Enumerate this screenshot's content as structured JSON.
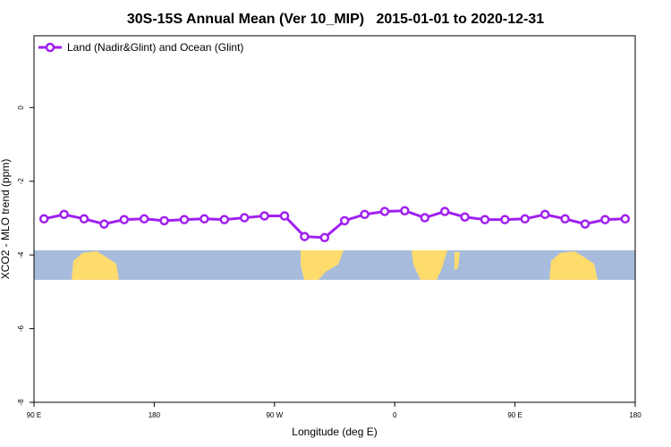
{
  "chart_data": {
    "type": "line",
    "title": "30S-15S Annual Mean (Ver 10_MIP)   2015-01-01 to 2020-12-31",
    "x_label": "Longitude (deg E)",
    "y_label": "XCO2 - MLO trend (ppm)",
    "xlim": [
      90,
      540
    ],
    "xticks": [
      {
        "value": 90,
        "label": "90 E"
      },
      {
        "value": 180,
        "label": "180"
      },
      {
        "value": 270,
        "label": "90 W"
      },
      {
        "value": 360,
        "label": "0"
      },
      {
        "value": 450,
        "label": "90 E"
      },
      {
        "value": 540,
        "label": "180"
      }
    ],
    "ylim": [
      -8,
      1.95
    ],
    "yticks": [
      -8,
      -6,
      -4,
      -2,
      0
    ],
    "legend": "top-left",
    "x": [
      97.5,
      112.5,
      127.5,
      142.5,
      157.5,
      172.5,
      187.5,
      202.5,
      217.5,
      232.5,
      247.5,
      262.5,
      277.5,
      292.5,
      307.5,
      322.5,
      337.5,
      352.5,
      367.5,
      382.5,
      397.5,
      412.5,
      427.5,
      442.5,
      457.5,
      472.5,
      487.5,
      502.5,
      517.5,
      532.5
    ],
    "series": [
      {
        "name": "Land (Nadir&Glint) and Ocean (Glint)",
        "color": "#a020f0",
        "values": [
          -3.02,
          -2.9,
          -3.02,
          -3.16,
          -3.04,
          -3.02,
          -3.07,
          -3.04,
          -3.02,
          -3.04,
          -2.99,
          -2.94,
          -2.94,
          -3.5,
          -3.53,
          -3.07,
          -2.9,
          -2.82,
          -2.8,
          -2.99,
          -2.82,
          -2.97,
          -3.04,
          -3.04,
          -3.02,
          -2.9,
          -3.02,
          -3.16,
          -3.04,
          -3.02
        ]
      }
    ]
  }
}
